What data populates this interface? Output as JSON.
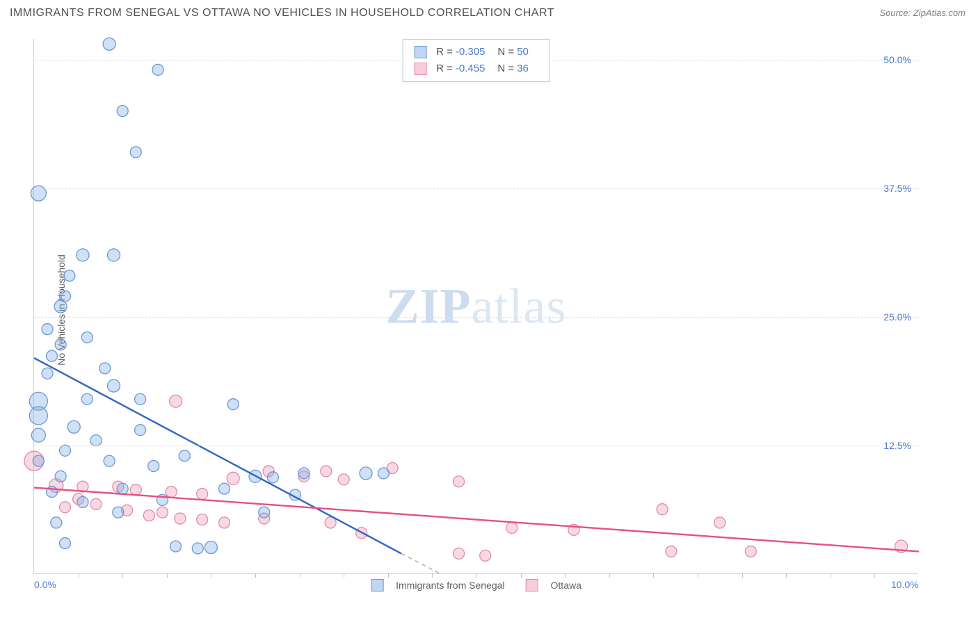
{
  "title": "IMMIGRANTS FROM SENEGAL VS OTTAWA NO VEHICLES IN HOUSEHOLD CORRELATION CHART",
  "source_label": "Source: ZipAtlas.com",
  "watermark": {
    "bold": "ZIP",
    "rest": "atlas"
  },
  "ylabel": "No Vehicles in Household",
  "chart": {
    "type": "scatter",
    "xlim": [
      0,
      10
    ],
    "ylim": [
      0,
      52
    ],
    "xticks": [
      0,
      10
    ],
    "xtick_labels": [
      "0.0%",
      "10.0%"
    ],
    "xtick_minor": [
      0.5,
      1,
      1.5,
      2,
      2.5,
      3,
      3.5,
      4,
      4.5,
      5,
      5.5,
      6,
      6.5,
      7,
      7.5,
      8,
      8.5,
      9,
      9.5
    ],
    "yticks": [
      12.5,
      25,
      37.5,
      50
    ],
    "ytick_labels": [
      "12.5%",
      "25.0%",
      "37.5%",
      "50.0%"
    ],
    "grid_color": "#e0e0e0",
    "axis_color": "#d0d0d0",
    "background_color": "#ffffff",
    "tick_label_color": "#4a7bd0",
    "series": [
      {
        "name": "Immigrants from Senegal",
        "color_fill": "rgba(120,165,225,0.35)",
        "color_stroke": "#6a9ad6",
        "trend_color": "#2d68c4",
        "trend_dash_color": "#b0b0b0",
        "R": "-0.305",
        "N": "50",
        "trend": {
          "x1": 0,
          "y1": 21,
          "x2": 4.15,
          "y2": 2.0,
          "dash_x2": 4.6,
          "dash_y2": 0
        },
        "points": [
          {
            "x": 0.85,
            "y": 51.5,
            "r": 9
          },
          {
            "x": 1.4,
            "y": 49.0,
            "r": 8
          },
          {
            "x": 1.0,
            "y": 45.0,
            "r": 8
          },
          {
            "x": 1.15,
            "y": 41.0,
            "r": 8
          },
          {
            "x": 0.05,
            "y": 37.0,
            "r": 11
          },
          {
            "x": 0.55,
            "y": 31.0,
            "r": 9
          },
          {
            "x": 0.9,
            "y": 31.0,
            "r": 9
          },
          {
            "x": 0.4,
            "y": 29.0,
            "r": 8
          },
          {
            "x": 0.35,
            "y": 27.0,
            "r": 8
          },
          {
            "x": 0.3,
            "y": 26.0,
            "r": 9
          },
          {
            "x": 0.6,
            "y": 23.0,
            "r": 8
          },
          {
            "x": 0.15,
            "y": 23.8,
            "r": 8
          },
          {
            "x": 0.3,
            "y": 22.3,
            "r": 8
          },
          {
            "x": 0.2,
            "y": 21.2,
            "r": 8
          },
          {
            "x": 0.9,
            "y": 18.3,
            "r": 9
          },
          {
            "x": 1.2,
            "y": 17.0,
            "r": 8
          },
          {
            "x": 0.6,
            "y": 17.0,
            "r": 8
          },
          {
            "x": 0.05,
            "y": 16.8,
            "r": 13
          },
          {
            "x": 0.05,
            "y": 15.4,
            "r": 13
          },
          {
            "x": 0.45,
            "y": 14.3,
            "r": 9
          },
          {
            "x": 2.25,
            "y": 16.5,
            "r": 8
          },
          {
            "x": 1.2,
            "y": 14.0,
            "r": 8
          },
          {
            "x": 0.7,
            "y": 13.0,
            "r": 8
          },
          {
            "x": 0.35,
            "y": 12.0,
            "r": 8
          },
          {
            "x": 0.85,
            "y": 11.0,
            "r": 8
          },
          {
            "x": 1.35,
            "y": 10.5,
            "r": 8
          },
          {
            "x": 3.75,
            "y": 9.8,
            "r": 9
          },
          {
            "x": 3.95,
            "y": 9.8,
            "r": 8
          },
          {
            "x": 2.5,
            "y": 9.5,
            "r": 9
          },
          {
            "x": 2.7,
            "y": 9.4,
            "r": 8
          },
          {
            "x": 3.05,
            "y": 9.8,
            "r": 8
          },
          {
            "x": 2.15,
            "y": 8.3,
            "r": 8
          },
          {
            "x": 2.95,
            "y": 7.7,
            "r": 8
          },
          {
            "x": 0.3,
            "y": 9.5,
            "r": 8
          },
          {
            "x": 1.0,
            "y": 8.3,
            "r": 8
          },
          {
            "x": 0.2,
            "y": 8.0,
            "r": 8
          },
          {
            "x": 0.55,
            "y": 7.0,
            "r": 8
          },
          {
            "x": 1.45,
            "y": 7.2,
            "r": 8
          },
          {
            "x": 0.95,
            "y": 6.0,
            "r": 8
          },
          {
            "x": 2.6,
            "y": 6.0,
            "r": 8
          },
          {
            "x": 0.25,
            "y": 5.0,
            "r": 8
          },
          {
            "x": 1.6,
            "y": 2.7,
            "r": 8
          },
          {
            "x": 1.85,
            "y": 2.5,
            "r": 8
          },
          {
            "x": 2.0,
            "y": 2.6,
            "r": 9
          },
          {
            "x": 0.35,
            "y": 3.0,
            "r": 8
          },
          {
            "x": 0.05,
            "y": 13.5,
            "r": 10
          },
          {
            "x": 0.8,
            "y": 20.0,
            "r": 8
          },
          {
            "x": 0.15,
            "y": 19.5,
            "r": 8
          },
          {
            "x": 1.7,
            "y": 11.5,
            "r": 8
          },
          {
            "x": 0.05,
            "y": 11.0,
            "r": 8
          }
        ]
      },
      {
        "name": "Ottawa",
        "color_fill": "rgba(235,145,175,0.35)",
        "color_stroke": "#e28aa8",
        "trend_color": "#e5517e",
        "R": "-0.455",
        "N": "36",
        "trend": {
          "x1": 0,
          "y1": 8.4,
          "x2": 10,
          "y2": 2.2
        },
        "points": [
          {
            "x": 0.0,
            "y": 11.0,
            "r": 14
          },
          {
            "x": 0.25,
            "y": 8.6,
            "r": 10
          },
          {
            "x": 0.55,
            "y": 8.5,
            "r": 8
          },
          {
            "x": 0.95,
            "y": 8.5,
            "r": 8
          },
          {
            "x": 0.7,
            "y": 6.8,
            "r": 8
          },
          {
            "x": 0.35,
            "y": 6.5,
            "r": 8
          },
          {
            "x": 1.15,
            "y": 8.2,
            "r": 8
          },
          {
            "x": 1.05,
            "y": 6.2,
            "r": 8
          },
          {
            "x": 1.3,
            "y": 5.7,
            "r": 8
          },
          {
            "x": 1.55,
            "y": 8.0,
            "r": 8
          },
          {
            "x": 1.45,
            "y": 6.0,
            "r": 8
          },
          {
            "x": 1.65,
            "y": 5.4,
            "r": 8
          },
          {
            "x": 1.6,
            "y": 16.8,
            "r": 9
          },
          {
            "x": 1.9,
            "y": 7.8,
            "r": 8
          },
          {
            "x": 1.9,
            "y": 5.3,
            "r": 8
          },
          {
            "x": 2.25,
            "y": 9.3,
            "r": 9
          },
          {
            "x": 2.15,
            "y": 5.0,
            "r": 8
          },
          {
            "x": 2.65,
            "y": 10.0,
            "r": 8
          },
          {
            "x": 2.6,
            "y": 5.4,
            "r": 8
          },
          {
            "x": 3.05,
            "y": 9.5,
            "r": 8
          },
          {
            "x": 3.3,
            "y": 10.0,
            "r": 8
          },
          {
            "x": 3.35,
            "y": 5.0,
            "r": 8
          },
          {
            "x": 3.7,
            "y": 4.0,
            "r": 8
          },
          {
            "x": 3.5,
            "y": 9.2,
            "r": 8
          },
          {
            "x": 4.05,
            "y": 10.3,
            "r": 8
          },
          {
            "x": 4.8,
            "y": 9.0,
            "r": 8
          },
          {
            "x": 4.8,
            "y": 2.0,
            "r": 8
          },
          {
            "x": 5.1,
            "y": 1.8,
            "r": 8
          },
          {
            "x": 5.4,
            "y": 4.5,
            "r": 8
          },
          {
            "x": 6.1,
            "y": 4.3,
            "r": 8
          },
          {
            "x": 7.1,
            "y": 6.3,
            "r": 8
          },
          {
            "x": 7.2,
            "y": 2.2,
            "r": 8
          },
          {
            "x": 7.75,
            "y": 5.0,
            "r": 8
          },
          {
            "x": 8.1,
            "y": 2.2,
            "r": 8
          },
          {
            "x": 9.8,
            "y": 2.7,
            "r": 9
          },
          {
            "x": 0.5,
            "y": 7.3,
            "r": 8
          }
        ]
      }
    ]
  },
  "legend_top": [
    {
      "swatch_fill": "rgba(120,165,225,0.45)",
      "swatch_stroke": "#6a9ad6",
      "r_label": "R =",
      "r_val": "-0.305",
      "n_label": "N =",
      "n_val": "50"
    },
    {
      "swatch_fill": "rgba(235,145,175,0.45)",
      "swatch_stroke": "#e28aa8",
      "r_label": "R =",
      "r_val": "-0.455",
      "n_label": "N =",
      "n_val": "36"
    }
  ],
  "legend_bottom": [
    {
      "swatch_fill": "rgba(120,165,225,0.45)",
      "swatch_stroke": "#6a9ad6",
      "label": "Immigrants from Senegal"
    },
    {
      "swatch_fill": "rgba(235,145,175,0.45)",
      "swatch_stroke": "#e28aa8",
      "label": "Ottawa"
    }
  ]
}
